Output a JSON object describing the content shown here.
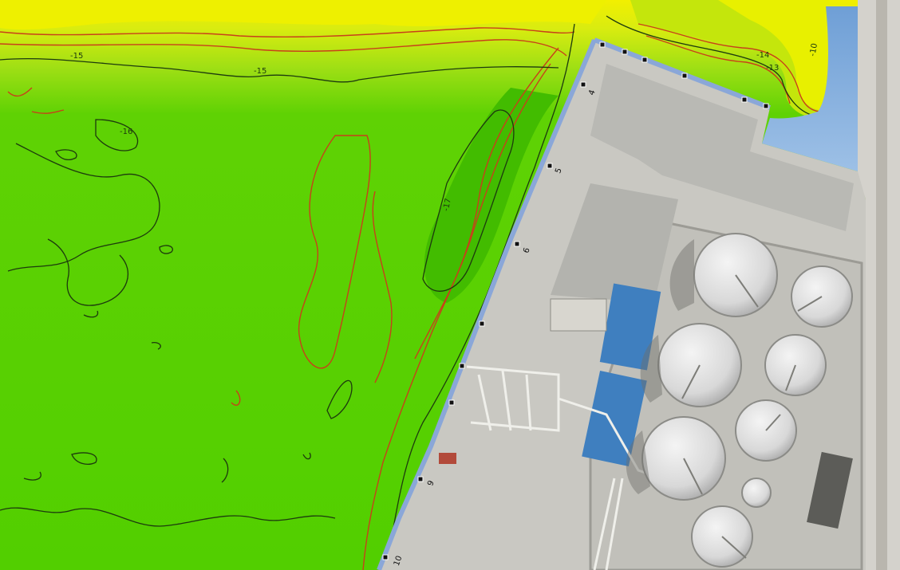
{
  "map": {
    "colors": {
      "shallow": "#e8f000",
      "mid": "#a6e01a",
      "deep": "#52d000",
      "deeper": "#48c200",
      "red_contour": "#c8401a",
      "dark_contour": "#1d3a0e",
      "water": "#8fb4de",
      "quay_edge": "#8aa7d8",
      "concrete": "#c9c9c4",
      "roof_blue": "#3f7fbf"
    },
    "contour_labels": [
      {
        "id": "c1",
        "text": "-15"
      },
      {
        "id": "c2",
        "text": "-15"
      },
      {
        "id": "c3",
        "text": "-14"
      },
      {
        "id": "c4",
        "text": "-13"
      },
      {
        "id": "c5",
        "text": "-10"
      },
      {
        "id": "c6",
        "text": "-17"
      },
      {
        "id": "c7",
        "text": "-16"
      }
    ],
    "quay_markers": [
      {
        "id": "m4",
        "text": "4"
      },
      {
        "id": "m5",
        "text": "5"
      },
      {
        "id": "m6",
        "text": "6"
      },
      {
        "id": "m9",
        "text": "9"
      },
      {
        "id": "m10",
        "text": "10"
      }
    ]
  }
}
